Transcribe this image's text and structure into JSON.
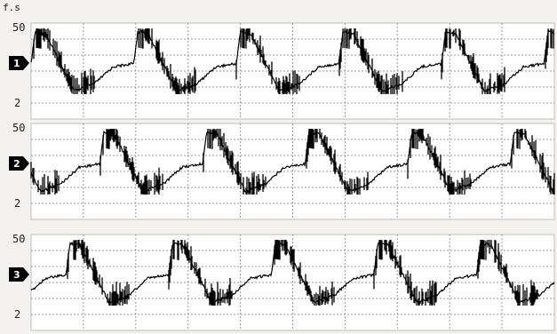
{
  "unit_label": "f.s",
  "colors": {
    "background": "#ffffff",
    "grid": "#9a9a9a",
    "trace": "#000000",
    "page": "#f4f2ee"
  },
  "chart_data": [
    {
      "type": "line",
      "channel": "1",
      "y_ticks": [
        "50",
        "2"
      ],
      "ylim": [
        2,
        50
      ],
      "grid": true,
      "cycles": 5.1,
      "phase_offset": 0.0
    },
    {
      "type": "line",
      "channel": "2",
      "y_ticks": [
        "50",
        "2"
      ],
      "ylim": [
        2,
        50
      ],
      "grid": true,
      "cycles": 5.1,
      "phase_offset": 0.33
    },
    {
      "type": "line",
      "channel": "3",
      "y_ticks": [
        "50",
        "2"
      ],
      "ylim": [
        2,
        50
      ],
      "grid": true,
      "cycles": 5.1,
      "phase_offset": 0.66
    }
  ]
}
